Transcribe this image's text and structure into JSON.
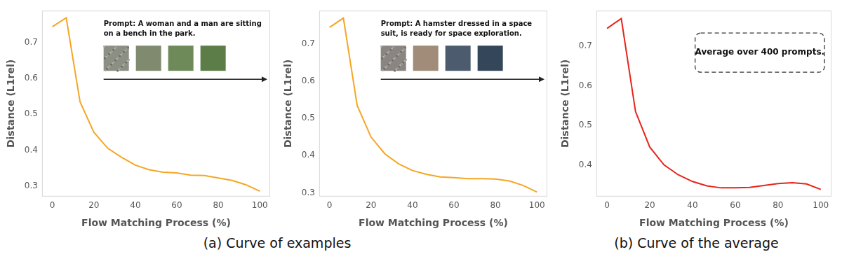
{
  "chart_data": [
    {
      "type": "line",
      "annotation": [
        "Prompt: A woman and a man are sitting",
        "on a bench in the park."
      ],
      "x_label": "Flow Matching Process (%)",
      "y_label": "Distance (L1rel)",
      "x": [
        0,
        6.67,
        13.33,
        20,
        26.67,
        33.33,
        40,
        46.67,
        53.33,
        60,
        66.67,
        73.33,
        80,
        86.67,
        93.33,
        100
      ],
      "values": [
        0.745,
        0.77,
        0.535,
        0.45,
        0.405,
        0.38,
        0.358,
        0.345,
        0.338,
        0.336,
        0.33,
        0.329,
        0.322,
        0.315,
        0.303,
        0.285
      ],
      "color": "#f5a623",
      "xlim": [
        -5,
        105
      ],
      "xticks": [
        0,
        20,
        40,
        60,
        80,
        100
      ],
      "ylim": [
        0.27,
        0.79
      ],
      "yticks": [
        0.3,
        0.4,
        0.5,
        0.6,
        0.7
      ],
      "grid": false
    },
    {
      "type": "line",
      "annotation": [
        "Prompt: A hamster dressed in a space",
        "suit, is ready for space exploration."
      ],
      "x_label": "Flow Matching Process (%)",
      "y_label": "Distance (L1rel)",
      "x": [
        0,
        6.67,
        13.33,
        20,
        26.67,
        33.33,
        40,
        46.67,
        53.33,
        60,
        66.67,
        73.33,
        80,
        86.67,
        93.33,
        100
      ],
      "values": [
        0.745,
        0.77,
        0.535,
        0.45,
        0.405,
        0.378,
        0.36,
        0.35,
        0.343,
        0.341,
        0.338,
        0.338,
        0.337,
        0.332,
        0.32,
        0.302
      ],
      "color": "#f5a623",
      "xlim": [
        -5,
        105
      ],
      "xticks": [
        0,
        20,
        40,
        60,
        80,
        100
      ],
      "ylim": [
        0.29,
        0.79
      ],
      "yticks": [
        0.3,
        0.4,
        0.5,
        0.6,
        0.7
      ],
      "grid": false
    },
    {
      "type": "line",
      "annotation": [
        "Average over 400 prompts."
      ],
      "x_label": "Flow Matching Process (%)",
      "y_label": "Distance (L1rel)",
      "x": [
        0,
        6.67,
        13.33,
        20,
        26.67,
        33.33,
        40,
        46.67,
        53.33,
        60,
        66.67,
        73.33,
        80,
        86.67,
        93.33,
        100
      ],
      "values": [
        0.745,
        0.77,
        0.535,
        0.445,
        0.4,
        0.375,
        0.358,
        0.347,
        0.342,
        0.342,
        0.343,
        0.348,
        0.353,
        0.355,
        0.352,
        0.338
      ],
      "color": "#e8231a",
      "xlim": [
        -5,
        105
      ],
      "xticks": [
        0,
        20,
        40,
        60,
        80,
        100
      ],
      "ylim": [
        0.32,
        0.79
      ],
      "yticks": [
        0.4,
        0.5,
        0.6,
        0.7
      ],
      "grid": false
    }
  ],
  "captions": [
    "(a) Curve of examples",
    "(b) Curve of the average"
  ]
}
